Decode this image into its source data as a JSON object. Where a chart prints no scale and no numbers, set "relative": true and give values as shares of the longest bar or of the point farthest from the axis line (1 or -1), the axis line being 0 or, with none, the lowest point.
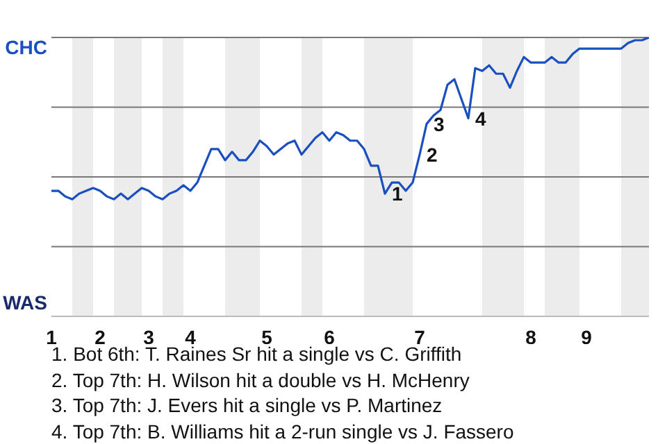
{
  "chart_data": {
    "type": "line",
    "relative": true,
    "categories": [
      "1",
      null,
      null,
      null,
      null,
      null,
      null,
      "2",
      null,
      null,
      null,
      null,
      null,
      null,
      "3",
      null,
      null,
      null,
      null,
      null,
      "4",
      null,
      null,
      null,
      null,
      null,
      null,
      null,
      null,
      null,
      null,
      "5",
      null,
      null,
      null,
      null,
      null,
      null,
      null,
      null,
      "6",
      null,
      null,
      null,
      null,
      null,
      null,
      null,
      null,
      null,
      null,
      null,
      null,
      "7",
      null,
      null,
      null,
      null,
      null,
      null,
      null,
      null,
      null,
      null,
      null,
      null,
      null,
      null,
      null,
      "8",
      null,
      null,
      null,
      null,
      null,
      null,
      null,
      "9",
      null,
      null,
      null,
      null,
      null,
      null,
      null,
      null,
      null
    ],
    "series": [
      {
        "color": "#1a4fc0",
        "values": [
          0.45,
          0.45,
          0.43,
          0.42,
          0.44,
          0.45,
          0.46,
          0.45,
          0.43,
          0.42,
          0.44,
          0.42,
          0.44,
          0.46,
          0.45,
          0.43,
          0.42,
          0.44,
          0.45,
          0.47,
          0.45,
          0.48,
          0.54,
          0.6,
          0.6,
          0.56,
          0.59,
          0.56,
          0.56,
          0.59,
          0.63,
          0.61,
          0.58,
          0.6,
          0.62,
          0.63,
          0.58,
          0.61,
          0.64,
          0.66,
          0.63,
          0.66,
          0.65,
          0.63,
          0.63,
          0.6,
          0.54,
          0.54,
          0.44,
          0.48,
          0.48,
          0.45,
          0.48,
          0.58,
          0.69,
          0.72,
          0.74,
          0.83,
          0.85,
          0.78,
          0.71,
          0.89,
          0.88,
          0.9,
          0.87,
          0.87,
          0.82,
          0.88,
          0.93,
          0.91,
          0.91,
          0.91,
          0.93,
          0.91,
          0.91,
          0.94,
          0.96,
          0.96,
          0.96,
          0.96,
          0.96,
          0.96,
          0.96,
          0.98,
          0.99,
          0.99,
          1.0
        ]
      }
    ],
    "grid": false,
    "legend": false,
    "marker": "none",
    "line_style": "solid",
    "ref_lines": [
      {
        "axis": "y",
        "value": 0.25,
        "color": "#777777"
      },
      {
        "axis": "y",
        "value": 0.5,
        "color": "#777777"
      },
      {
        "axis": "y",
        "value": 0.75,
        "color": "#777777"
      },
      {
        "axis": "y",
        "value": 1,
        "color": "#777777"
      }
    ],
    "annotations": [
      "CHC",
      "WAS",
      "1",
      "2",
      "3",
      "4",
      "1. Bot 6th: T. Raines Sr hit a single vs C. Griffith",
      "2. Top 7th: H. Wilson hit a double vs H. McHenry",
      "3. Top 7th: J. Evers hit a single vs P. Martinez",
      "4. Top 7th: B. Williams hit a 2-run single vs J. Fassero"
    ]
  }
}
